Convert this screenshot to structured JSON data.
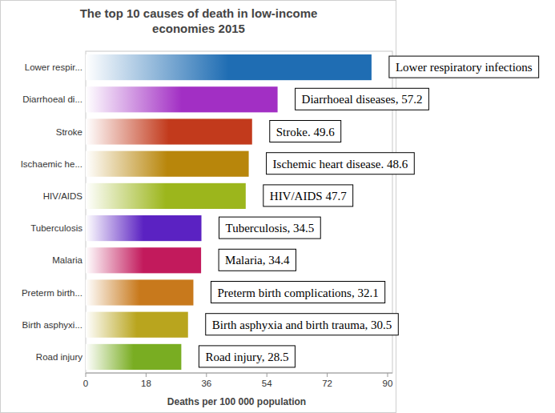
{
  "chart_data": {
    "type": "bar",
    "orientation": "horizontal",
    "title": "The top 10 causes of death in low-income economies 2015",
    "xlabel": "Deaths per 100 000 population",
    "categories": [
      "Lower respir...",
      "Diarrhoeal di...",
      "Stroke",
      "Ischaemic he...",
      "HIV/AIDS",
      "Tuberculosis",
      "Malaria",
      "Preterm birth...",
      "Birth asphyxi...",
      "Road injury"
    ],
    "values": [
      85.2,
      57.2,
      49.6,
      48.6,
      47.7,
      34.5,
      34.4,
      32.1,
      30.5,
      28.5
    ],
    "colors": [
      "#1f6db3",
      "#a22fc4",
      "#c23a1c",
      "#b8860b",
      "#9cb61c",
      "#5b22c2",
      "#c21a5c",
      "#c8791c",
      "#b9a51e",
      "#79ad22"
    ],
    "annotations": [
      "Lower respiratory infections",
      "Diarrhoeal diseases, 57.2",
      "Stroke. 49.6",
      "Ischemic heart disease. 48.6",
      "HIV/AIDS 47.7",
      "Tuberculosis, 34.5",
      "Malaria, 34.4",
      "Preterm birth complications, 32.1",
      "Birth asphyxia and birth trauma, 30.5",
      "Road injury, 28.5"
    ],
    "xlim": [
      0,
      90
    ],
    "xticks": [
      0,
      18,
      36,
      54,
      72,
      90
    ],
    "grid": false
  }
}
